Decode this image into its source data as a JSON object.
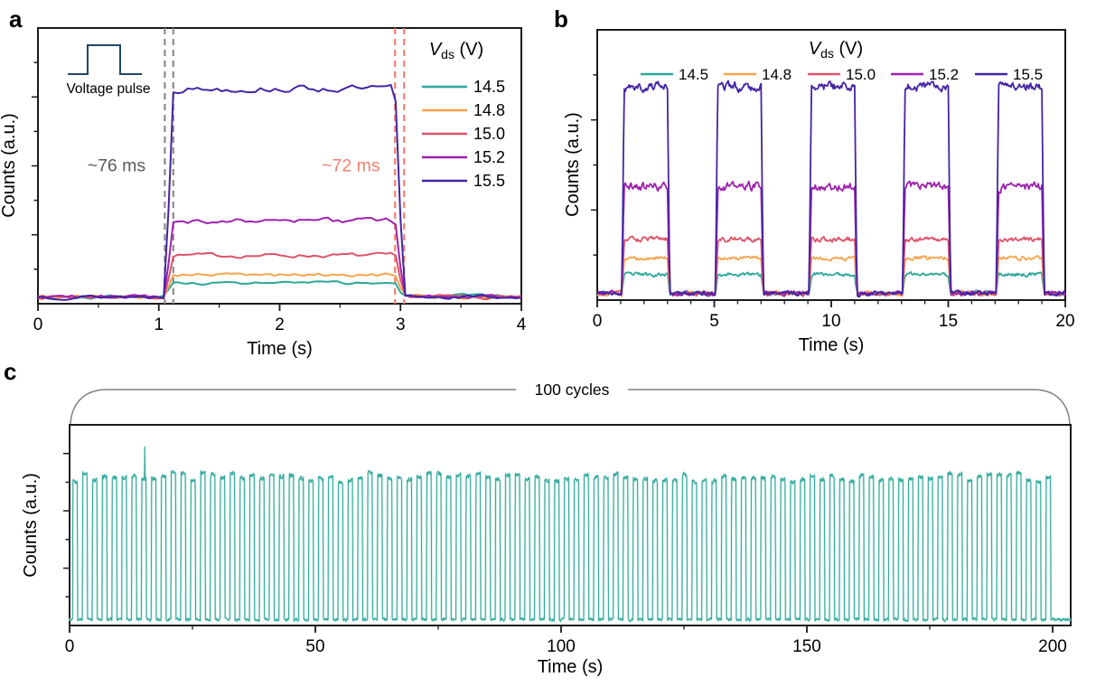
{
  "figure": {
    "panels": [
      {
        "label": "a"
      },
      {
        "label": "b"
      },
      {
        "label": "c"
      }
    ]
  },
  "colors": {
    "axis": "#1a1a1a",
    "gray_dash": "#8c8c8c",
    "salmon_dash": "#f07f72",
    "annotation_gray": "#595959",
    "pulse_inset": "#234569",
    "bracket": "#7f7f7f",
    "trace_halo": "#bce5de"
  },
  "chart_data": [
    {
      "id": "a",
      "type": "line",
      "title": "",
      "xlabel": "Time (s)",
      "ylabel": "Counts (a.u.)",
      "xlim": [
        0,
        4
      ],
      "xticks": [
        "0",
        "1",
        "2",
        "3",
        "4"
      ],
      "xtick_values": [
        0,
        1,
        2,
        3,
        4
      ],
      "x_minor_values": [
        0.5,
        1.5,
        2.5,
        3.5
      ],
      "y_axis": "unlabeled arbitrary units",
      "legend": {
        "title": {
          "symbol": "V",
          "sub": "ds",
          "rest": " (V)"
        },
        "position": "top-right-inside"
      },
      "rise_s": 0.07,
      "dt_s": 0.04,
      "series": [
        {
          "name": "14.5",
          "color": "#2aa79b",
          "baseline": 0.025,
          "plateau": 0.075,
          "on": [
            [
              1.05,
              2.955
            ]
          ],
          "noise": 0.01,
          "base_noise": 0.013,
          "seed": 3
        },
        {
          "name": "14.8",
          "color": "#f7a44e",
          "baseline": 0.025,
          "plateau": 0.105,
          "on": [
            [
              1.05,
              2.955
            ]
          ],
          "noise": 0.011,
          "base_noise": 0.013,
          "seed": 5
        },
        {
          "name": "15.0",
          "color": "#dc546a",
          "baseline": 0.025,
          "plateau": 0.175,
          "on": [
            [
              1.05,
              2.955
            ]
          ],
          "noise": 0.014,
          "base_noise": 0.013,
          "seed": 7
        },
        {
          "name": "15.2",
          "color": "#9e22ad",
          "baseline": 0.025,
          "plateau": 0.3,
          "on": [
            [
              1.05,
              2.955
            ]
          ],
          "noise": 0.018,
          "base_noise": 0.013,
          "seed": 9
        },
        {
          "name": "15.5",
          "color": "#4424a4",
          "baseline": 0.025,
          "plateau": 0.78,
          "on": [
            [
              1.05,
              2.955
            ]
          ],
          "noise": 0.022,
          "base_noise": 0.013,
          "seed": 13
        }
      ],
      "dashed_markers": [
        {
          "t": 1.05,
          "color": "#8c8c8c"
        },
        {
          "t": 1.12,
          "color": "#8c8c8c"
        },
        {
          "t": 2.955,
          "color": "#f07f72"
        },
        {
          "t": 3.03,
          "color": "#f07f72"
        }
      ],
      "annotations": [
        {
          "text": "~76 ms",
          "color": "#595959",
          "t": 0.65,
          "v": 0.5
        },
        {
          "text": "~72 ms",
          "color": "#f07f72",
          "t": 2.59,
          "v": 0.5
        }
      ],
      "inset": {
        "icon": "voltage-pulse",
        "label": "Voltage pulse"
      }
    },
    {
      "id": "b",
      "type": "line",
      "title": "",
      "xlabel": "Time (s)",
      "ylabel": "Counts (a.u.)",
      "xlim": [
        0,
        20
      ],
      "xticks": [
        "0",
        "5",
        "10",
        "15",
        "20"
      ],
      "xtick_values": [
        0,
        5,
        10,
        15,
        20
      ],
      "x_minor_step": 1,
      "y_axis": "unlabeled arbitrary units",
      "legend": {
        "title": {
          "symbol": "V",
          "sub": "ds",
          "rest": " (V)"
        },
        "position": "top-center-inside-row"
      },
      "rise_s": 0.1,
      "dt_s": 0.04,
      "series": [
        {
          "name": "14.5",
          "color": "#2aa79b",
          "baseline": 0.025,
          "plateau": 0.095,
          "on": [
            [
              1.05,
              3.0
            ],
            [
              5.05,
              7.0
            ],
            [
              9.05,
              11.0
            ],
            [
              13.05,
              15.0
            ],
            [
              17.05,
              19.0
            ]
          ],
          "noise": 0.012,
          "base_noise": 0.015,
          "seed": 23
        },
        {
          "name": "14.8",
          "color": "#f7a44e",
          "baseline": 0.025,
          "plateau": 0.155,
          "on": [
            [
              1.05,
              3.0
            ],
            [
              5.05,
              7.0
            ],
            [
              9.05,
              11.0
            ],
            [
              13.05,
              15.0
            ],
            [
              17.05,
              19.0
            ]
          ],
          "noise": 0.013,
          "base_noise": 0.015,
          "seed": 29
        },
        {
          "name": "15.0",
          "color": "#dc546a",
          "baseline": 0.025,
          "plateau": 0.225,
          "on": [
            [
              1.05,
              3.0
            ],
            [
              5.05,
              7.0
            ],
            [
              9.05,
              11.0
            ],
            [
              13.05,
              15.0
            ],
            [
              17.05,
              19.0
            ]
          ],
          "noise": 0.016,
          "base_noise": 0.015,
          "seed": 31
        },
        {
          "name": "15.2",
          "color": "#9e22ad",
          "baseline": 0.025,
          "plateau": 0.42,
          "on": [
            [
              1.05,
              3.0
            ],
            [
              5.05,
              7.0
            ],
            [
              9.05,
              11.0
            ],
            [
              13.05,
              15.0
            ],
            [
              17.05,
              19.0
            ]
          ],
          "noise": 0.028,
          "base_noise": 0.015,
          "seed": 37
        },
        {
          "name": "15.5",
          "color": "#4424a4",
          "baseline": 0.025,
          "plateau": 0.79,
          "on": [
            [
              1.05,
              3.0
            ],
            [
              5.05,
              7.0
            ],
            [
              9.05,
              11.0
            ],
            [
              13.05,
              15.0
            ],
            [
              17.05,
              19.0
            ]
          ],
          "noise": 0.03,
          "base_noise": 0.015,
          "seed": 41
        }
      ]
    },
    {
      "id": "c",
      "type": "line",
      "title": "",
      "xlabel": "Time (s)",
      "ylabel": "Counts (a.u.)",
      "xlim": [
        0,
        200
      ],
      "xticks": [
        "0",
        "50",
        "100",
        "150",
        "200"
      ],
      "xtick_values": [
        0,
        50,
        100,
        150,
        200
      ],
      "x_minor_values": [
        25,
        75,
        125,
        175
      ],
      "y_axis": "unlabeled arbitrary units",
      "rise_s": 0.05,
      "dt_s": 0.05,
      "pulse_train": {
        "cycles": 100,
        "period_s": 2,
        "on_start_offset_s": 0.62,
        "on_duration_s": 0.96
      },
      "series": [
        {
          "name": "14.5",
          "color": "#2aa79b",
          "baseline": 0.03,
          "plateau": 0.74,
          "noise": 0.018,
          "base_noise": 0.012,
          "seed": 71,
          "spike": {
            "t": 15.3,
            "amp": 0.17,
            "width": 0.07
          }
        }
      ],
      "annotations": [
        {
          "text": "100 cycles",
          "color": "#000000"
        }
      ]
    }
  ]
}
